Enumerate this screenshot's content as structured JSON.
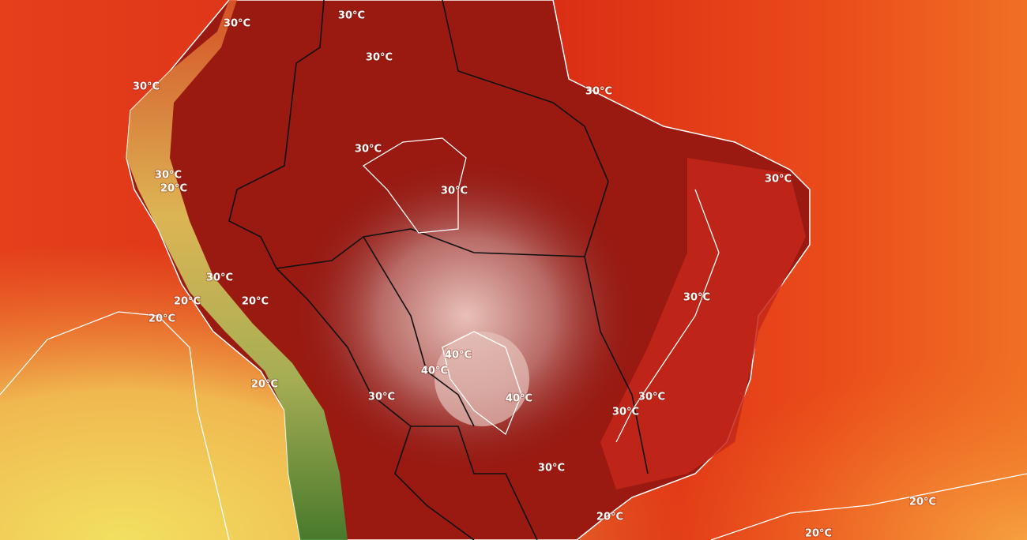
{
  "map": {
    "contour_labels": [
      "30°C",
      "30°C",
      "30°C",
      "30°C",
      "30°C",
      "30°C",
      "30°C",
      "30°C",
      "20°C",
      "30°C",
      "30°C",
      "20°C",
      "20°C",
      "20°C",
      "30°C",
      "40°C",
      "40°C",
      "30°C",
      "40°C",
      "30°C",
      "30°C",
      "20°C",
      "30°C",
      "20°C",
      "20°C",
      "20°C"
    ]
  }
}
